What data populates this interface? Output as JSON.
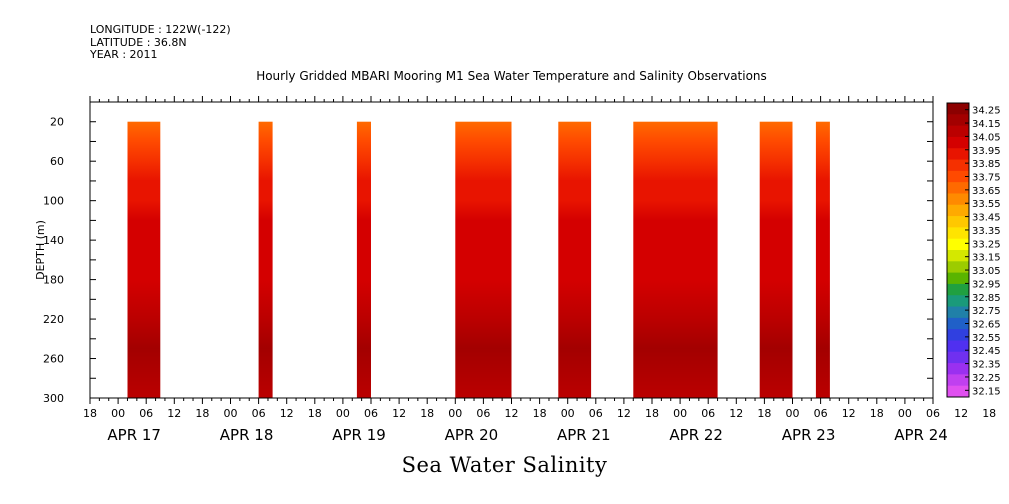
{
  "meta": {
    "longitude": "LONGITUDE : 122W(-122)",
    "latitude": "LATITUDE : 36.8N",
    "year": "YEAR : 2011"
  },
  "chart_data": {
    "type": "heatmap",
    "title": "Hourly Gridded MBARI Mooring M1 Sea Water Temperature and Salinity Observations",
    "subtitle": "Sea Water Salinity",
    "ylabel": "DEPTH (m)",
    "xlabel": "",
    "x_unit": "hours since APR 17 2011 00:00",
    "xlim": [
      -6,
      174
    ],
    "ylim": [
      300,
      0
    ],
    "y_ticks": [
      20,
      60,
      100,
      140,
      180,
      220,
      260,
      300
    ],
    "x_hour_ticks": [
      "18",
      "00",
      "06",
      "12",
      "18",
      "00",
      "06",
      "12",
      "18",
      "00",
      "06",
      "12",
      "18",
      "00",
      "06",
      "12",
      "18",
      "00",
      "06",
      "12",
      "18",
      "00",
      "06",
      "12",
      "18",
      "00",
      "06",
      "12",
      "18",
      "00",
      "06",
      "12",
      "18"
    ],
    "x_date_labels": [
      "APR 17",
      "APR 18",
      "APR 19",
      "APR 20",
      "APR 21",
      "APR 22",
      "APR 23",
      "APR 24"
    ],
    "data_blocks": [
      {
        "start": "APR 17 02:00",
        "end": "APR 17 09:00"
      },
      {
        "start": "APR 18 06:00",
        "end": "APR 18 09:00"
      },
      {
        "start": "APR 19 03:00",
        "end": "APR 19 06:00"
      },
      {
        "start": "APR 20 00:00",
        "end": "APR 20 12:00"
      },
      {
        "start": "APR 20 22:00",
        "end": "APR 21 05:00"
      },
      {
        "start": "APR 21 14:00",
        "end": "APR 22 08:00"
      },
      {
        "start": "APR 22 17:00",
        "end": "APR 23 00:00"
      },
      {
        "start": "APR 23 05:00",
        "end": "APR 23 08:00"
      }
    ],
    "depth_profile": [
      {
        "depth": 20,
        "salinity": 33.6
      },
      {
        "depth": 40,
        "salinity": 33.7
      },
      {
        "depth": 60,
        "salinity": 33.8
      },
      {
        "depth": 80,
        "salinity": 33.85
      },
      {
        "depth": 100,
        "salinity": 33.9
      },
      {
        "depth": 120,
        "salinity": 33.95
      },
      {
        "depth": 140,
        "salinity": 34.0
      },
      {
        "depth": 180,
        "salinity": 34.0
      },
      {
        "depth": 220,
        "salinity": 34.05
      },
      {
        "depth": 250,
        "salinity": 34.15
      },
      {
        "depth": 300,
        "salinity": 34.1
      }
    ],
    "colorbar": {
      "levels": [
        "34.25",
        "34.15",
        "34.05",
        "33.95",
        "33.85",
        "33.75",
        "33.65",
        "33.55",
        "33.45",
        "33.35",
        "33.25",
        "33.15",
        "33.05",
        "32.95",
        "32.85",
        "32.75",
        "32.65",
        "32.55",
        "32.45",
        "32.35",
        "32.25",
        "32.15"
      ],
      "colors": [
        "#8c0000",
        "#a30000",
        "#bb0000",
        "#d40000",
        "#e81400",
        "#f53000",
        "#ff4a00",
        "#ff6a00",
        "#ff8a00",
        "#ffaa00",
        "#ffc800",
        "#ffe400",
        "#ffff00",
        "#d4e800",
        "#9ccc00",
        "#5ab400",
        "#20a040",
        "#1a9a7a",
        "#2080a8",
        "#2060c8",
        "#3040e0",
        "#5030f0",
        "#7030f0",
        "#9a30f0",
        "#c040f0",
        "#e050f0"
      ]
    }
  }
}
